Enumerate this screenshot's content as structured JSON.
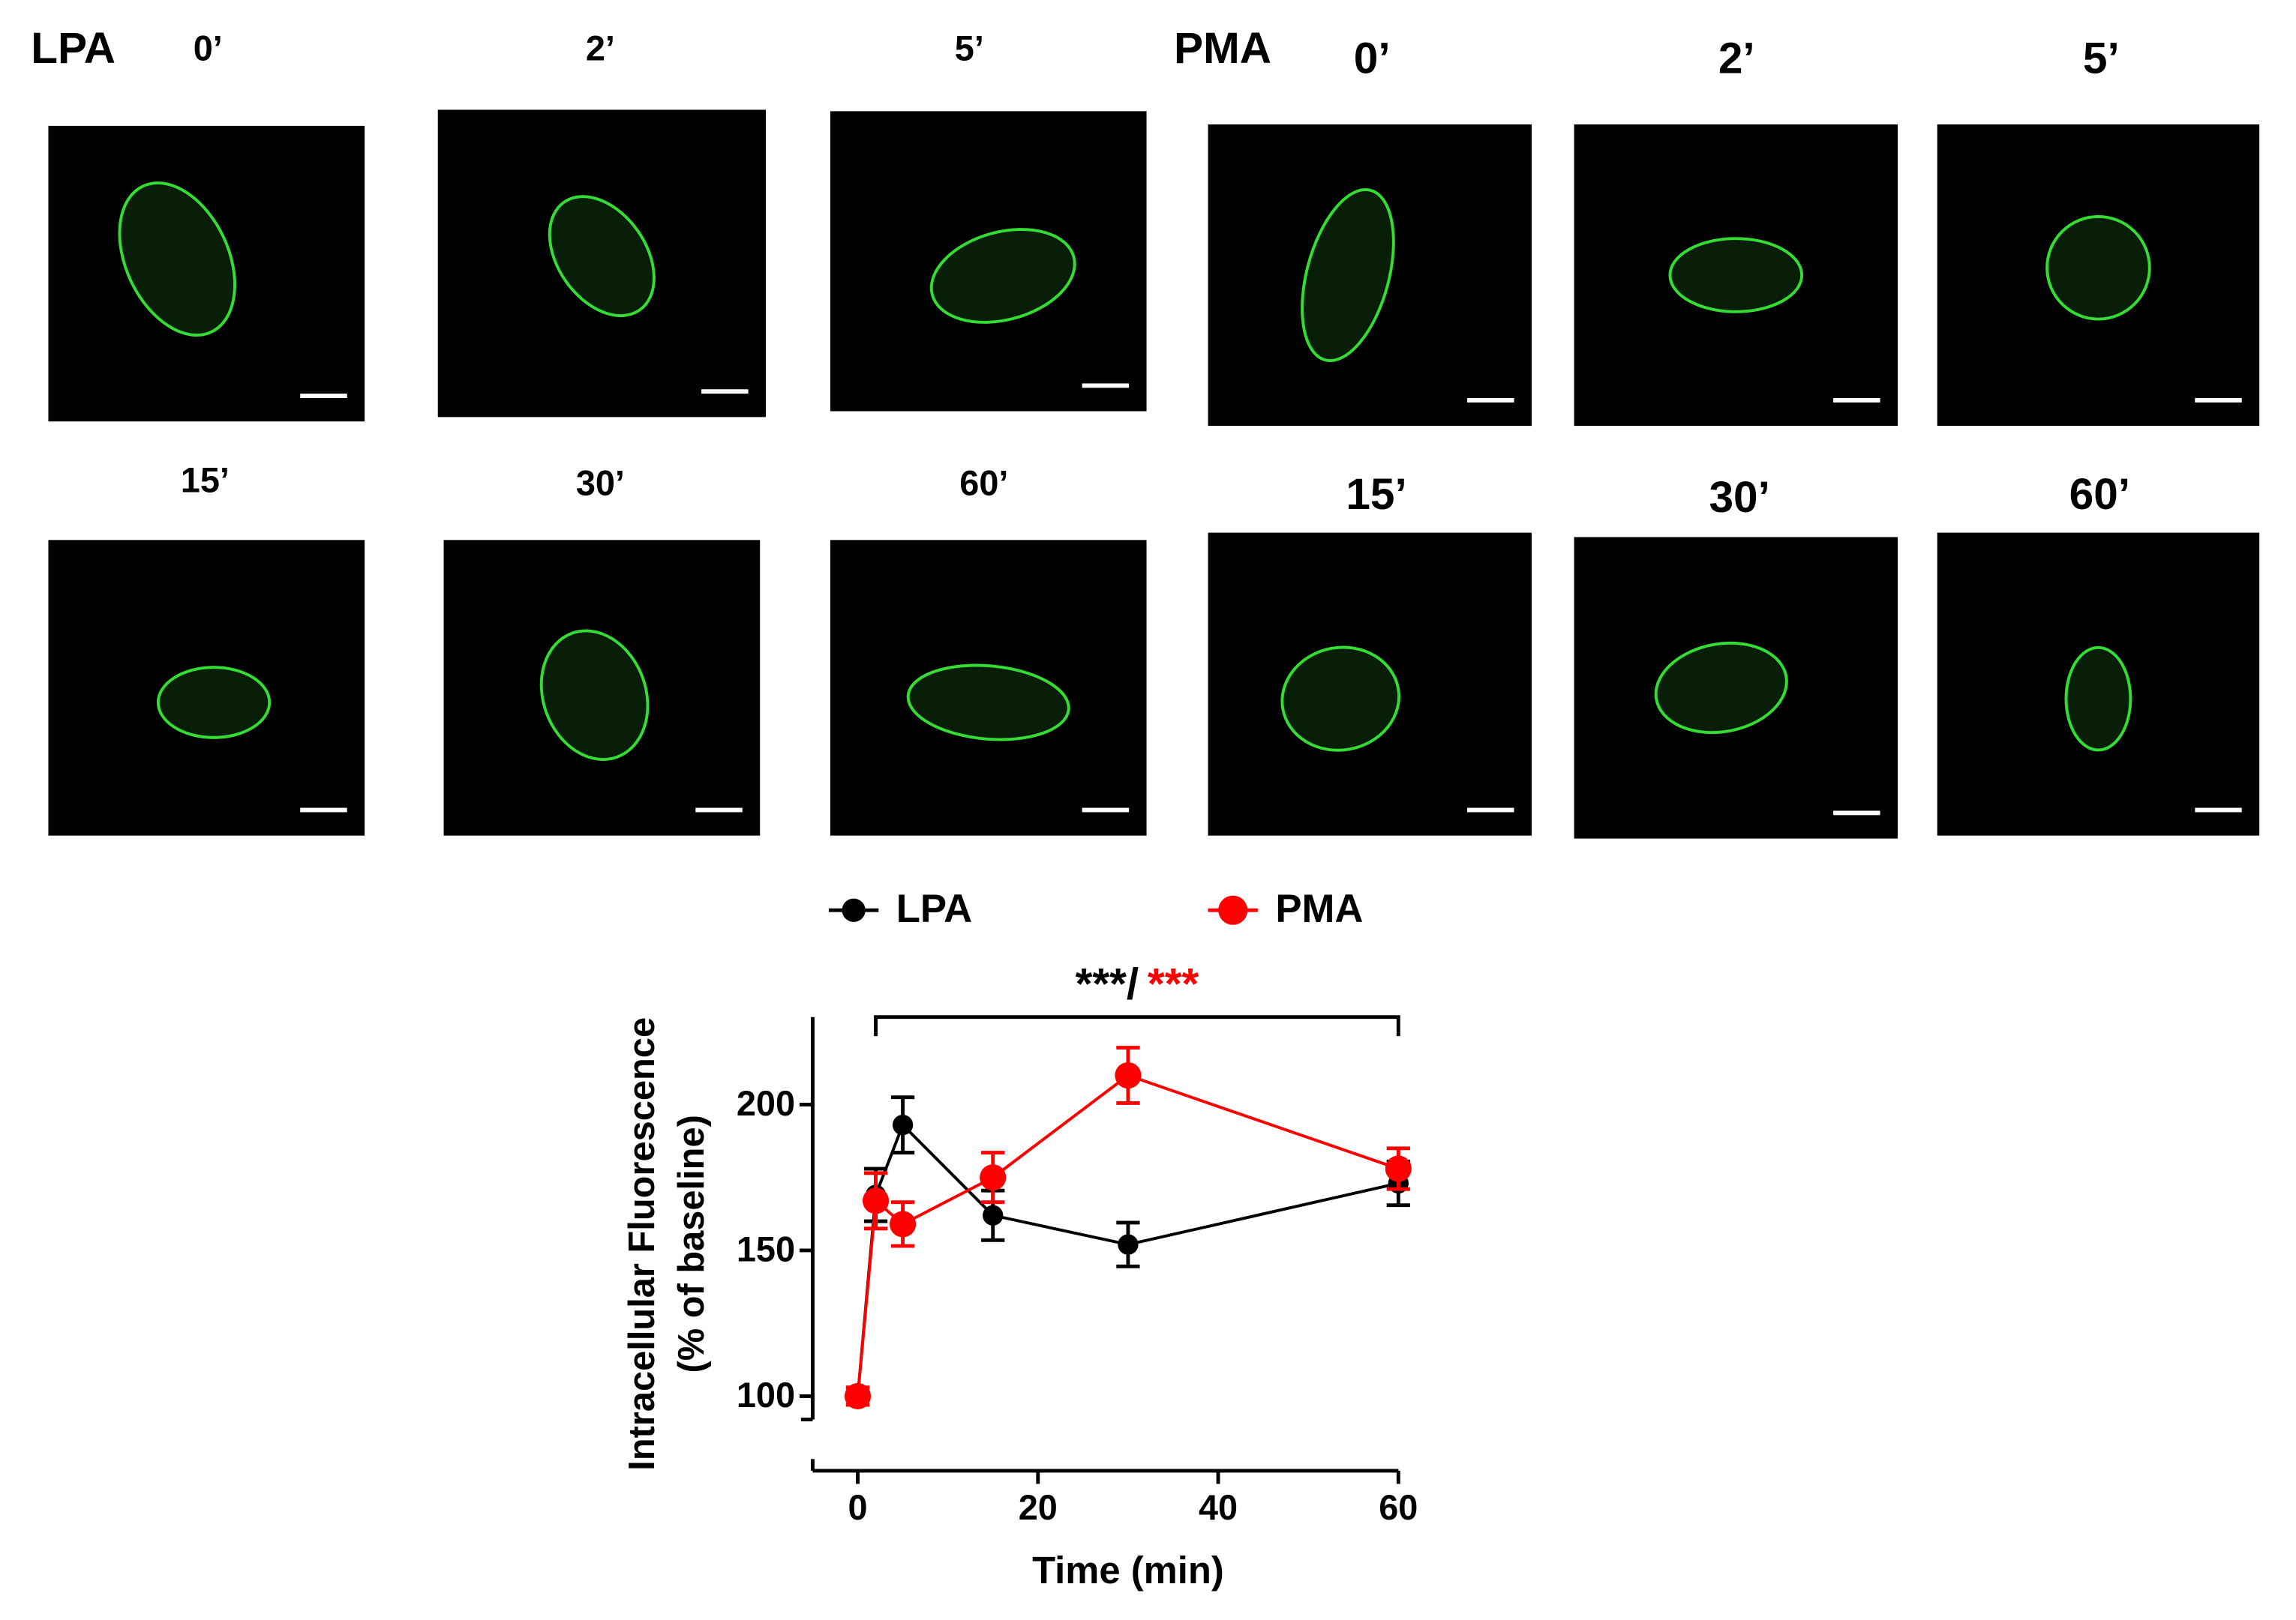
{
  "image_panels": [
    {
      "label": "LPA",
      "times": [
        "0’",
        "2’",
        "5’",
        "15’",
        "30’",
        "60’"
      ]
    },
    {
      "label": "PMA",
      "times": [
        "0’",
        "2’",
        "5’",
        "15’",
        "30’",
        "60’"
      ]
    }
  ],
  "chart_data": {
    "type": "line",
    "x": [
      0,
      2,
      5,
      15,
      30,
      60
    ],
    "series": [
      {
        "name": "LPA",
        "color": "#000000",
        "values": [
          100,
          169,
          193,
          162,
          152,
          173
        ],
        "errors": [
          3,
          9,
          9.5,
          8.5,
          7.5,
          7.5
        ]
      },
      {
        "name": "PMA",
        "color": "#ff0000",
        "values": [
          100,
          167,
          159,
          175,
          210,
          178
        ],
        "errors": [
          3,
          9.5,
          7.5,
          8.5,
          9.5,
          7
        ]
      }
    ],
    "xlabel": "Time (min)",
    "ylabel": [
      "Intracellular Fluorescence",
      "(% of baseline)"
    ],
    "xlim": [
      -5,
      60
    ],
    "xticks": [
      0,
      20,
      40,
      60
    ],
    "ylim": [
      92,
      230
    ],
    "yticks": [
      100,
      150,
      200
    ],
    "legend": "top",
    "significance": {
      "x": [
        2,
        60
      ],
      "labels": [
        {
          "text": "***/",
          "color": "#000000"
        },
        {
          "text": "***",
          "color": "#ff0000"
        }
      ]
    }
  }
}
